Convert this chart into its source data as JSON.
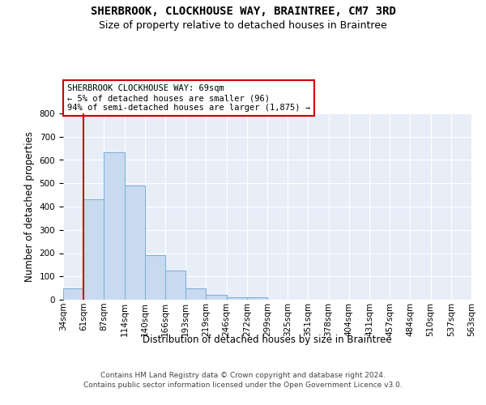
{
  "title": "SHERBROOK, CLOCKHOUSE WAY, BRAINTREE, CM7 3RD",
  "subtitle": "Size of property relative to detached houses in Braintree",
  "xlabel": "Distribution of detached houses by size in Braintree",
  "ylabel": "Number of detached properties",
  "bar_values": [
    48,
    432,
    632,
    490,
    192,
    125,
    47,
    22,
    11,
    10,
    0,
    0,
    0,
    0,
    0,
    0,
    0,
    0,
    0,
    0
  ],
  "bin_labels": [
    "34sqm",
    "61sqm",
    "87sqm",
    "114sqm",
    "140sqm",
    "166sqm",
    "193sqm",
    "219sqm",
    "246sqm",
    "272sqm",
    "299sqm",
    "325sqm",
    "351sqm",
    "378sqm",
    "404sqm",
    "431sqm",
    "457sqm",
    "484sqm",
    "510sqm",
    "537sqm",
    "563sqm"
  ],
  "bar_color": "#c8daf0",
  "bar_edge_color": "#7bafd4",
  "vline_color": "#cc0000",
  "vline_x": 0.5,
  "annotation_text": "SHERBROOK CLOCKHOUSE WAY: 69sqm\n← 5% of detached houses are smaller (96)\n94% of semi-detached houses are larger (1,875) →",
  "ylim": [
    0,
    800
  ],
  "yticks": [
    0,
    100,
    200,
    300,
    400,
    500,
    600,
    700,
    800
  ],
  "background_color": "#e8eef8",
  "grid_color": "#ffffff",
  "footer_line1": "Contains HM Land Registry data © Crown copyright and database right 2024.",
  "footer_line2": "Contains public sector information licensed under the Open Government Licence v3.0.",
  "title_fontsize": 10,
  "subtitle_fontsize": 9,
  "axis_label_fontsize": 8.5,
  "tick_fontsize": 7.5,
  "annotation_fontsize": 7.5,
  "footer_fontsize": 6.5
}
